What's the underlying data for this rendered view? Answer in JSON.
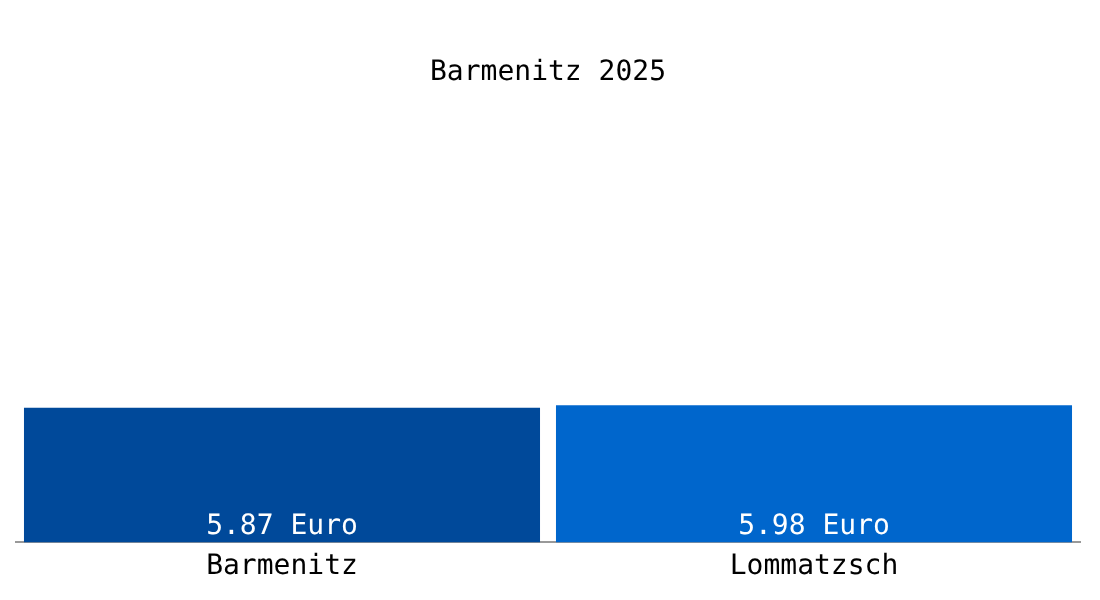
{
  "chart_data": {
    "type": "bar",
    "title": "Barmenitz 2025",
    "categories": [
      "Barmenitz",
      "Lommatzsch"
    ],
    "values": [
      5.87,
      5.98
    ],
    "colors": [
      "#00499a",
      "#0066cc"
    ],
    "value_labels": [
      "5.87 Euro",
      "5.98 Euro"
    ],
    "tick_labels": "x",
    "grid": false,
    "legend": false
  }
}
